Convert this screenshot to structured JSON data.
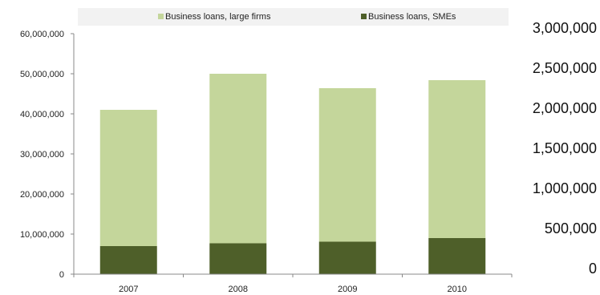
{
  "chart_data": {
    "type": "bar",
    "stacked": true,
    "categories": [
      "2007",
      "2008",
      "2009",
      "2010"
    ],
    "series": [
      {
        "name": "Business loans, SMEs",
        "values": [
          7000000,
          7700000,
          8100000,
          9000000
        ],
        "color": "#4e5f29"
      },
      {
        "name": "Business loans, large firms",
        "values": [
          34000000,
          42300000,
          38300000,
          39400000
        ],
        "color": "#c4d69b"
      }
    ],
    "legend_order": [
      1,
      0
    ],
    "legend_placement": "top",
    "ylim": [
      0,
      60000000
    ],
    "yticks": [
      "0",
      "10,000,000",
      "20,000,000",
      "30,000,000",
      "40,000,000",
      "50,000,000",
      "60,000,000"
    ],
    "y2lim": [
      0,
      3000000
    ],
    "y2ticks": [
      "0",
      "500,000",
      "1,000,000",
      "1,500,000",
      "2,000,000",
      "2,500,000",
      "3,000,000"
    ],
    "grid": false
  }
}
